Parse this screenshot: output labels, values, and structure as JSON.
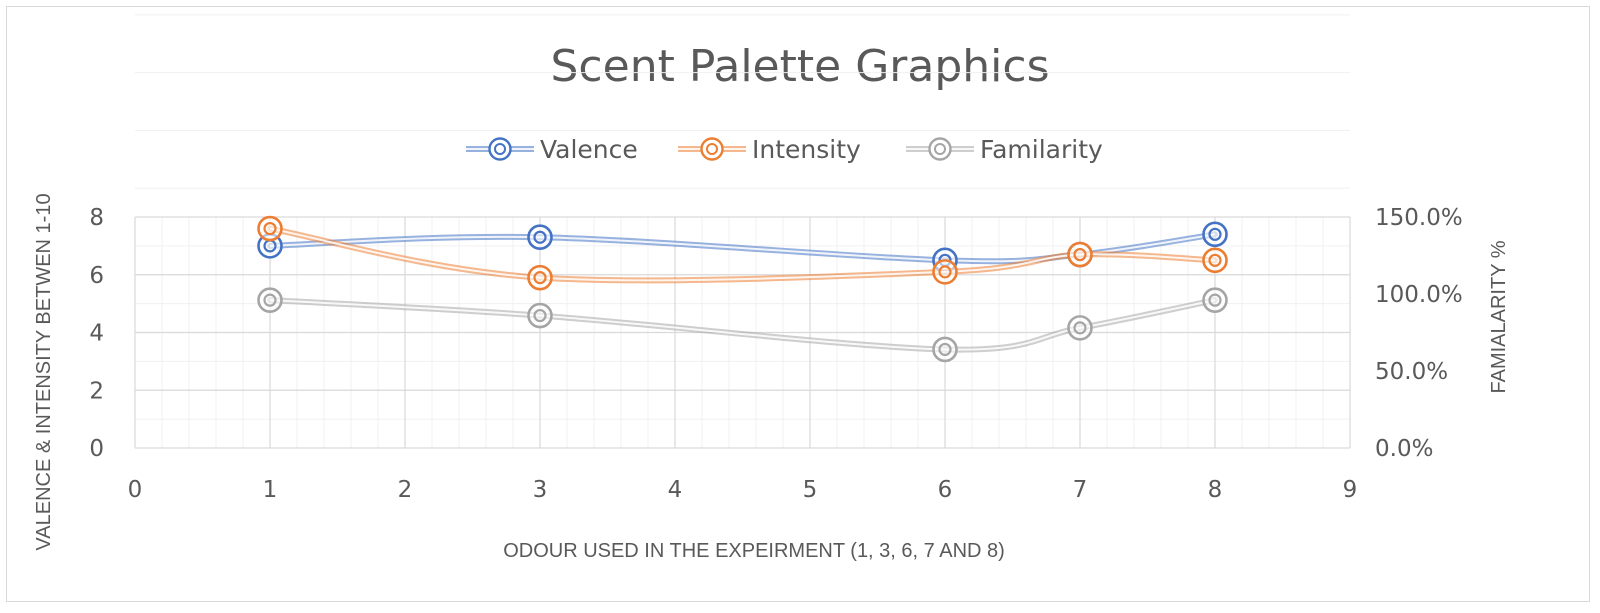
{
  "chart_data": {
    "type": "scatter",
    "title": "Scent Palette Graphics",
    "xlabel": "ODOUR USED IN THE EXPEIRMENT (1, 3, 6, 7 AND 8)",
    "ylabel": "VALENCE & INTENSITY BETWEN 1-10",
    "y2label": "FAMIALARITY %",
    "xlim": [
      0,
      9
    ],
    "ylim": [
      0,
      8
    ],
    "y2lim": [
      0,
      1.5
    ],
    "x_ticks": [
      "0",
      "1",
      "2",
      "3",
      "4",
      "5",
      "6",
      "7",
      "8",
      "9"
    ],
    "y_ticks": [
      "0",
      "2",
      "4",
      "6",
      "8"
    ],
    "y2_ticks": [
      "0.0%",
      "50.0%",
      "100.0%",
      "150.0%"
    ],
    "grid": true,
    "legend_position": "top",
    "smooth_lines": true,
    "series": [
      {
        "name": "Valence",
        "axis": "left",
        "color": "#4472C4",
        "x": [
          1,
          3,
          6,
          7,
          8
        ],
        "y": [
          7.0,
          7.3,
          6.5,
          6.7,
          7.4
        ]
      },
      {
        "name": "Intensity",
        "axis": "left",
        "color": "#ED7D31",
        "x": [
          1,
          3,
          6,
          7,
          8
        ],
        "y": [
          7.6,
          5.9,
          6.1,
          6.7,
          6.5
        ]
      },
      {
        "name": "Familarity",
        "axis": "right",
        "color": "#A5A5A5",
        "x": [
          1,
          3,
          6,
          7,
          8
        ],
        "y": [
          0.96,
          0.86,
          0.64,
          0.78,
          0.96
        ]
      }
    ]
  }
}
